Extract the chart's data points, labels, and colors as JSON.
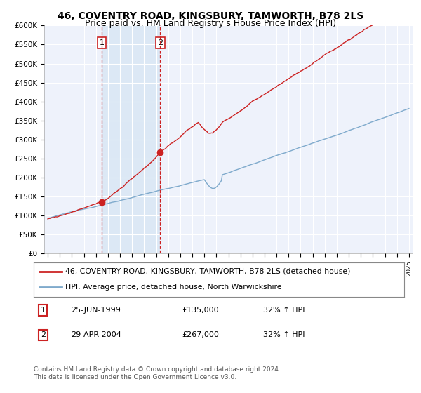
{
  "title": "46, COVENTRY ROAD, KINGSBURY, TAMWORTH, B78 2LS",
  "subtitle": "Price paid vs. HM Land Registry's House Price Index (HPI)",
  "ylim": [
    0,
    600000
  ],
  "yticks": [
    0,
    50000,
    100000,
    150000,
    200000,
    250000,
    300000,
    350000,
    400000,
    450000,
    500000,
    550000,
    600000
  ],
  "ytick_labels": [
    "£0",
    "£50K",
    "£100K",
    "£150K",
    "£200K",
    "£250K",
    "£300K",
    "£350K",
    "£400K",
    "£450K",
    "£500K",
    "£550K",
    "£600K"
  ],
  "hpi_color": "#7faacc",
  "price_color": "#cc2222",
  "vline_color": "#cc2222",
  "shade_color": "#dce8f5",
  "legend_box_color": "#cc2222",
  "transaction1": {
    "date_num": 1999.48,
    "price": 135000,
    "label": "1",
    "date_str": "25-JUN-1999",
    "hpi_pct": "32% ↑ HPI"
  },
  "transaction2": {
    "date_num": 2004.33,
    "price": 267000,
    "label": "2",
    "date_str": "29-APR-2004",
    "hpi_pct": "32% ↑ HPI"
  },
  "legend_line1": "46, COVENTRY ROAD, KINGSBURY, TAMWORTH, B78 2LS (detached house)",
  "legend_line2": "HPI: Average price, detached house, North Warwickshire",
  "footer1": "Contains HM Land Registry data © Crown copyright and database right 2024.",
  "footer2": "This data is licensed under the Open Government Licence v3.0.",
  "background_color": "#ffffff",
  "plot_bg_color": "#eef2fb",
  "grid_color": "#ffffff",
  "title_fontsize": 10,
  "subtitle_fontsize": 9
}
